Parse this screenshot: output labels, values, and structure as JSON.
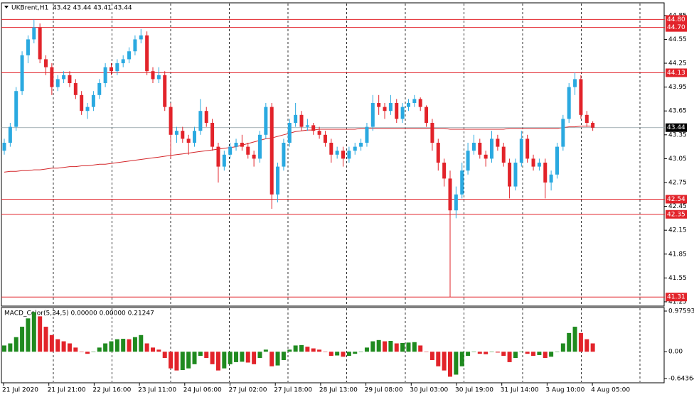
{
  "chart_data": {
    "type": "candlestick",
    "title": "UKBrent,H1",
    "ohlc_header": "43.42 43.44 43.41 43.44",
    "up_color": "#2aa9e0",
    "down_color": "#e2232a",
    "ma_color": "#d4262a",
    "ylim": [
      41.205,
      44.92
    ],
    "yticks": [
      44.85,
      44.55,
      44.25,
      43.95,
      43.65,
      43.35,
      43.05,
      42.75,
      42.45,
      42.15,
      41.85,
      41.55,
      41.25
    ],
    "levels": [
      {
        "value": 44.8,
        "label": "44.80"
      },
      {
        "value": 44.7,
        "label": "44.70"
      },
      {
        "value": 44.13,
        "label": "44.13"
      },
      {
        "value": 42.54,
        "label": "42.54"
      },
      {
        "value": 42.35,
        "label": "42.35"
      },
      {
        "value": 41.31,
        "label": "41.31"
      }
    ],
    "level_color": "#e2232a",
    "current_price": 43.44,
    "x_labels": [
      "21 Jul 2020",
      "21 Jul 21:00",
      "22 Jul 16:00",
      "23 Jul 11:00",
      "24 Jul 06:00",
      "27 Jul 02:00",
      "27 Jul 18:00",
      "28 Jul 13:00",
      "29 Jul 08:00",
      "30 Jul 03:00",
      "30 Jul 19:00",
      "31 Jul 14:00",
      "3 Aug 10:00",
      "4 Aug 05:00"
    ],
    "candles": [
      [
        43.15,
        43.3,
        43.1,
        43.25
      ],
      [
        43.25,
        43.5,
        43.2,
        43.45
      ],
      [
        43.45,
        43.95,
        43.4,
        43.9
      ],
      [
        43.9,
        44.4,
        43.85,
        44.35
      ],
      [
        44.35,
        44.6,
        44.25,
        44.55
      ],
      [
        44.55,
        44.8,
        44.5,
        44.7
      ],
      [
        44.7,
        44.75,
        44.25,
        44.3
      ],
      [
        44.3,
        44.35,
        44.1,
        44.2
      ],
      [
        44.2,
        44.25,
        43.85,
        43.95
      ],
      [
        43.95,
        44.1,
        43.9,
        44.05
      ],
      [
        44.05,
        44.15,
        44.0,
        44.1
      ],
      [
        44.1,
        44.15,
        43.95,
        44.0
      ],
      [
        44.0,
        44.05,
        43.8,
        43.85
      ],
      [
        43.85,
        43.9,
        43.6,
        43.65
      ],
      [
        43.65,
        43.75,
        43.55,
        43.7
      ],
      [
        43.7,
        43.9,
        43.65,
        43.85
      ],
      [
        43.85,
        44.05,
        43.8,
        44.0
      ],
      [
        44.0,
        44.25,
        43.95,
        44.2
      ],
      [
        44.2,
        44.25,
        44.1,
        44.15
      ],
      [
        44.15,
        44.3,
        44.1,
        44.25
      ],
      [
        44.25,
        44.35,
        44.2,
        44.3
      ],
      [
        44.3,
        44.45,
        44.25,
        44.4
      ],
      [
        44.4,
        44.6,
        44.35,
        44.55
      ],
      [
        44.55,
        44.68,
        44.5,
        44.6
      ],
      [
        44.6,
        44.65,
        44.1,
        44.15
      ],
      [
        44.15,
        44.2,
        44.0,
        44.05
      ],
      [
        44.05,
        44.2,
        44.0,
        44.1
      ],
      [
        44.1,
        44.15,
        43.65,
        43.7
      ],
      [
        43.7,
        43.75,
        43.05,
        43.35
      ],
      [
        43.35,
        43.45,
        43.25,
        43.4
      ],
      [
        43.4,
        43.45,
        43.25,
        43.3
      ],
      [
        43.3,
        43.35,
        43.1,
        43.25
      ],
      [
        43.25,
        43.45,
        43.2,
        43.4
      ],
      [
        43.4,
        43.8,
        43.35,
        43.65
      ],
      [
        43.65,
        43.7,
        43.45,
        43.5
      ],
      [
        43.5,
        43.55,
        43.15,
        43.2
      ],
      [
        43.2,
        43.25,
        42.75,
        42.95
      ],
      [
        42.95,
        43.15,
        42.9,
        43.1
      ],
      [
        43.1,
        43.25,
        43.05,
        43.2
      ],
      [
        43.2,
        43.3,
        43.15,
        43.25
      ],
      [
        43.25,
        43.35,
        43.15,
        43.2
      ],
      [
        43.2,
        43.25,
        43.05,
        43.1
      ],
      [
        43.1,
        43.15,
        42.95,
        43.05
      ],
      [
        43.05,
        43.4,
        43.0,
        43.35
      ],
      [
        43.35,
        43.75,
        43.3,
        43.7
      ],
      [
        43.7,
        43.75,
        42.42,
        42.6
      ],
      [
        42.6,
        43.0,
        42.5,
        42.95
      ],
      [
        42.95,
        43.3,
        42.9,
        43.25
      ],
      [
        43.25,
        43.55,
        43.2,
        43.5
      ],
      [
        43.5,
        43.75,
        43.45,
        43.6
      ],
      [
        43.6,
        43.65,
        43.4,
        43.45
      ],
      [
        43.45,
        43.55,
        43.4,
        43.47
      ],
      [
        43.47,
        43.5,
        43.35,
        43.4
      ],
      [
        43.4,
        43.45,
        43.3,
        43.35
      ],
      [
        43.35,
        43.4,
        43.2,
        43.25
      ],
      [
        43.25,
        43.3,
        43.0,
        43.1
      ],
      [
        43.1,
        43.2,
        43.05,
        43.15
      ],
      [
        43.15,
        43.2,
        42.95,
        43.05
      ],
      [
        43.05,
        43.2,
        43.0,
        43.15
      ],
      [
        43.15,
        43.25,
        43.1,
        43.2
      ],
      [
        43.2,
        43.3,
        43.15,
        43.25
      ],
      [
        43.25,
        43.5,
        43.2,
        43.45
      ],
      [
        43.45,
        43.85,
        43.4,
        43.75
      ],
      [
        43.75,
        43.85,
        43.6,
        43.7
      ],
      [
        43.7,
        43.75,
        43.55,
        43.65
      ],
      [
        43.65,
        43.85,
        43.6,
        43.75
      ],
      [
        43.75,
        43.8,
        43.5,
        43.55
      ],
      [
        43.55,
        43.75,
        43.5,
        43.7
      ],
      [
        43.7,
        43.8,
        43.65,
        43.75
      ],
      [
        43.75,
        43.85,
        43.7,
        43.8
      ],
      [
        43.8,
        43.82,
        43.65,
        43.7
      ],
      [
        43.7,
        43.72,
        43.45,
        43.5
      ],
      [
        43.5,
        43.55,
        43.15,
        43.25
      ],
      [
        43.25,
        43.3,
        42.9,
        43.0
      ],
      [
        43.0,
        43.05,
        42.7,
        42.8
      ],
      [
        42.8,
        42.9,
        41.31,
        42.4
      ],
      [
        42.4,
        42.7,
        42.3,
        42.6
      ],
      [
        42.6,
        43.0,
        42.55,
        42.9
      ],
      [
        42.9,
        43.25,
        42.85,
        43.15
      ],
      [
        43.15,
        43.35,
        43.1,
        43.25
      ],
      [
        43.25,
        43.3,
        43.05,
        43.1
      ],
      [
        43.1,
        43.15,
        42.95,
        43.05
      ],
      [
        43.05,
        43.4,
        43.0,
        43.3
      ],
      [
        43.3,
        43.35,
        43.15,
        43.2
      ],
      [
        43.2,
        43.25,
        42.95,
        43.0
      ],
      [
        43.0,
        43.05,
        42.55,
        42.7
      ],
      [
        42.7,
        43.05,
        42.65,
        43.0
      ],
      [
        43.0,
        43.4,
        42.95,
        43.3
      ],
      [
        43.3,
        43.35,
        43.0,
        43.05
      ],
      [
        43.05,
        43.1,
        42.9,
        42.95
      ],
      [
        42.95,
        43.05,
        42.9,
        43.0
      ],
      [
        43.0,
        43.05,
        42.55,
        42.75
      ],
      [
        42.75,
        42.9,
        42.65,
        42.85
      ],
      [
        42.85,
        43.25,
        42.8,
        43.2
      ],
      [
        43.2,
        43.6,
        43.15,
        43.55
      ],
      [
        43.55,
        44.0,
        43.5,
        43.95
      ],
      [
        43.95,
        44.13,
        43.85,
        44.05
      ],
      [
        44.05,
        44.1,
        43.55,
        43.6
      ],
      [
        43.6,
        43.65,
        43.45,
        43.5
      ],
      [
        43.5,
        43.52,
        43.4,
        43.44
      ]
    ],
    "ma": [
      42.88,
      42.89,
      42.89,
      42.9,
      42.9,
      42.91,
      42.91,
      42.92,
      42.93,
      42.93,
      42.94,
      42.95,
      42.95,
      42.96,
      42.96,
      42.97,
      42.98,
      42.98,
      42.99,
      43.0,
      43.01,
      43.02,
      43.03,
      43.04,
      43.05,
      43.06,
      43.07,
      43.08,
      43.09,
      43.1,
      43.11,
      43.12,
      43.13,
      43.14,
      43.15,
      43.16,
      43.17,
      43.18,
      43.19,
      43.2,
      43.22,
      43.24,
      43.26,
      43.28,
      43.3,
      43.31,
      43.33,
      43.35,
      43.37,
      43.39,
      43.4,
      43.41,
      43.41,
      43.42,
      43.42,
      43.42,
      43.42,
      43.42,
      43.42,
      43.42,
      43.43,
      43.43,
      43.43,
      43.43,
      43.43,
      43.43,
      43.43,
      43.43,
      43.43,
      43.43,
      43.43,
      43.43,
      43.43,
      43.43,
      43.43,
      43.42,
      43.42,
      43.42,
      43.42,
      43.42,
      43.42,
      43.42,
      43.42,
      43.42,
      43.42,
      43.43,
      43.43,
      43.43,
      43.43,
      43.43,
      43.43,
      43.43,
      43.43,
      43.43,
      43.44,
      43.45,
      43.45,
      43.46,
      43.46,
      43.46
    ],
    "macd_title": "MACD_Color(5,34,5) 0.00000 0.00000 0.21247",
    "macd_ylim": [
      -0.64364,
      0.97593
    ],
    "macd_yticks": [
      0.97593,
      {
        "value": 0,
        "label": "0.00"
      },
      -0.64364
    ],
    "macd_up_color": "#1f8a1f",
    "macd_down_color": "#e2232a",
    "macd": [
      0.15,
      0.2,
      0.35,
      0.6,
      0.8,
      0.95,
      0.85,
      0.6,
      0.4,
      0.3,
      0.25,
      0.2,
      0.1,
      0.0,
      -0.05,
      0.0,
      0.1,
      0.2,
      0.25,
      0.3,
      0.31,
      0.3,
      0.35,
      0.4,
      0.2,
      0.1,
      0.05,
      -0.15,
      -0.4,
      -0.45,
      -0.44,
      -0.4,
      -0.3,
      -0.1,
      -0.15,
      -0.3,
      -0.45,
      -0.4,
      -0.3,
      -0.25,
      -0.24,
      -0.26,
      -0.3,
      -0.15,
      0.05,
      -0.35,
      -0.33,
      -0.2,
      0.05,
      0.15,
      0.16,
      0.12,
      0.08,
      0.05,
      0.0,
      -0.1,
      -0.09,
      -0.12,
      -0.1,
      -0.05,
      0.0,
      0.1,
      0.25,
      0.28,
      0.25,
      0.26,
      0.2,
      0.21,
      0.22,
      0.23,
      0.15,
      0.0,
      -0.2,
      -0.35,
      -0.45,
      -0.6,
      -0.55,
      -0.35,
      -0.1,
      0.0,
      -0.05,
      -0.06,
      0.0,
      -0.02,
      -0.1,
      -0.25,
      -0.15,
      0.0,
      -0.05,
      -0.1,
      -0.08,
      -0.15,
      -0.12,
      0.0,
      0.2,
      0.45,
      0.6,
      0.45,
      0.3,
      0.2
    ]
  }
}
